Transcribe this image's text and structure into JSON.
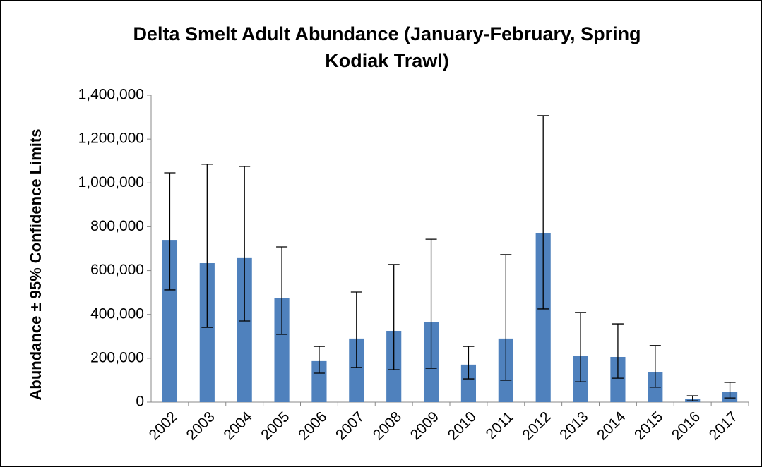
{
  "chart_data": {
    "type": "bar",
    "title": [
      "Delta Smelt Adult Abundance (January-February, Spring",
      "Kodiak Trawl)"
    ],
    "y_label": "Abundance ± 95% Confidence Limits",
    "categories": [
      "2002",
      "2003",
      "2004",
      "2005",
      "2006",
      "2007",
      "2008",
      "2009",
      "2010",
      "2011",
      "2012",
      "2013",
      "2014",
      "2015",
      "2016",
      "2017"
    ],
    "values": [
      740000,
      634000,
      657000,
      476000,
      187000,
      290000,
      325000,
      364000,
      171000,
      290000,
      772000,
      212000,
      206000,
      138000,
      16000,
      48000
    ],
    "lower": [
      512000,
      341000,
      370000,
      309000,
      132000,
      158000,
      148000,
      154000,
      106000,
      100000,
      425000,
      93000,
      109000,
      68000,
      6000,
      19000
    ],
    "upper": [
      1046000,
      1085000,
      1075000,
      708000,
      254000,
      502000,
      628000,
      743000,
      254000,
      673000,
      1307000,
      409000,
      357000,
      258000,
      29000,
      90000
    ],
    "color": "#4f81bd",
    "ylim": [
      0,
      1400000
    ],
    "yticks": [
      0,
      {
        "value": 200000,
        "label": "200,000"
      },
      {
        "value": 400000,
        "label": "400,000"
      },
      {
        "value": 600000,
        "label": "600,000"
      },
      {
        "value": 800000,
        "label": "800,000"
      },
      {
        "value": 1000000,
        "label": "1,000,000"
      },
      {
        "value": 1200000,
        "label": "1,200,000"
      },
      {
        "value": 1400000,
        "label": "1,400,000"
      }
    ],
    "grid": false
  }
}
